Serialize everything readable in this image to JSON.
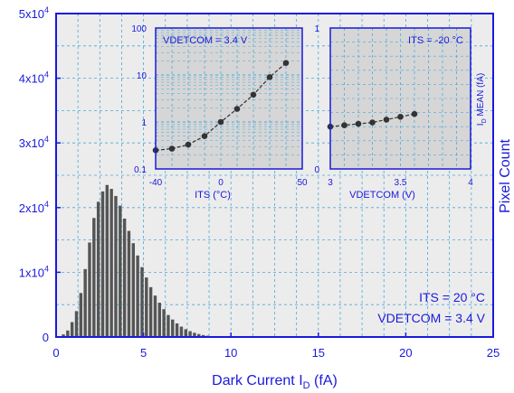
{
  "chart_data": [
    {
      "type": "bar",
      "xlabel_main": "Dark Current I",
      "xlabel_sub": "D",
      "xlabel_unit": " (fA)",
      "ylabel": "Pixel Count",
      "xlim": [
        0,
        25
      ],
      "ylim": [
        0,
        50000
      ],
      "xticks": [
        "0",
        "5",
        "10",
        "15",
        "20",
        "25"
      ],
      "yticks": [
        {
          "base": "0",
          "exp": ""
        },
        {
          "base": "1x10",
          "exp": "4"
        },
        {
          "base": "2x10",
          "exp": "4"
        },
        {
          "base": "3x10",
          "exp": "4"
        },
        {
          "base": "4x10",
          "exp": "4"
        },
        {
          "base": "5x10",
          "exp": "4"
        }
      ],
      "bin_width": 0.25,
      "bin_starts": [
        0.3,
        0.55,
        0.8,
        1.05,
        1.3,
        1.55,
        1.8,
        2.05,
        2.3,
        2.55,
        2.8,
        3.05,
        3.3,
        3.55,
        3.8,
        4.05,
        4.3,
        4.55,
        4.8,
        5.05,
        5.3,
        5.55,
        5.8,
        6.05,
        6.3,
        6.55,
        6.8,
        7.05,
        7.3,
        7.55,
        7.8,
        8.05,
        8.3,
        8.55,
        8.8,
        9.05,
        9.3
      ],
      "values": [
        400,
        1000,
        2300,
        4000,
        6800,
        10500,
        14600,
        18400,
        20900,
        22500,
        23500,
        22900,
        21800,
        20300,
        18300,
        16400,
        14500,
        12600,
        10800,
        9200,
        7700,
        6400,
        5300,
        4300,
        3400,
        2700,
        2100,
        1600,
        1200,
        900,
        650,
        450,
        300,
        200,
        130,
        80,
        40
      ],
      "grid": true,
      "annotation": [
        "ITS = 20 °C",
        "VDETCOM = 3.4 V"
      ]
    },
    {
      "type": "line",
      "label": "VDETCOM = 3.4 V",
      "xlabel": "ITS (°C)",
      "xlim": [
        -40,
        50
      ],
      "ylim": [
        0.1,
        100
      ],
      "yscale": "log",
      "xticks": [
        "-40",
        "0",
        "50"
      ],
      "yticks": [
        "0.1",
        "1",
        "10",
        "100"
      ],
      "x": [
        -40,
        -30,
        -20,
        -10,
        0,
        10,
        20,
        30,
        40
      ],
      "y": [
        0.25,
        0.27,
        0.33,
        0.5,
        1.0,
        1.9,
        3.8,
        9.0,
        18.0
      ]
    },
    {
      "type": "line",
      "label": "ITS = -20 °C",
      "xlabel": "VDETCOM (V)",
      "ylabel": "I",
      "ylabel_sub": "D",
      "ylabel_rest": " MEAN (fA)",
      "xlim": [
        3.0,
        4.0
      ],
      "ylim": [
        0,
        1
      ],
      "xticks": [
        "3",
        "3.5",
        "4"
      ],
      "yticks": [
        "0",
        "1"
      ],
      "x": [
        3.0,
        3.1,
        3.2,
        3.3,
        3.4,
        3.5,
        3.6
      ],
      "y": [
        0.3,
        0.31,
        0.32,
        0.33,
        0.35,
        0.37,
        0.39
      ]
    }
  ]
}
